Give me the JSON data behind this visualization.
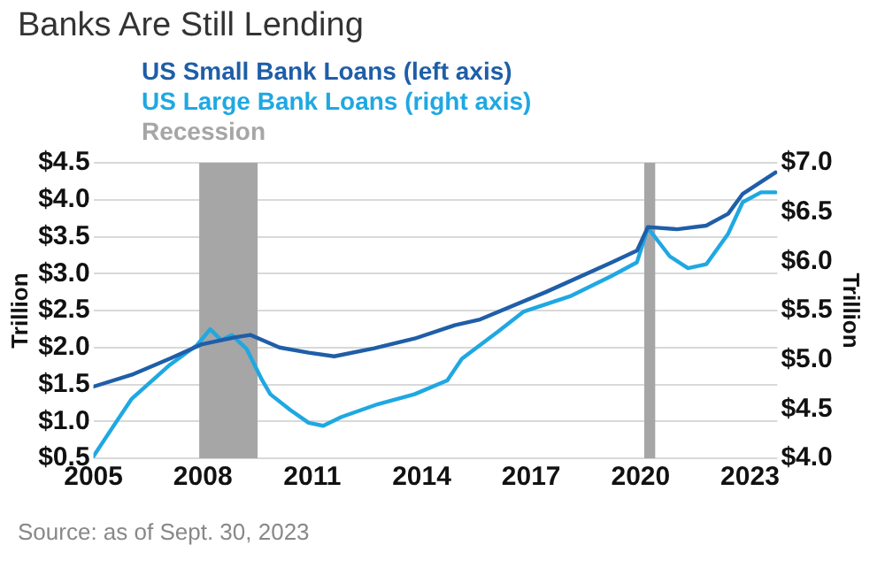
{
  "chart_data": {
    "type": "line",
    "title": "Banks Are Still Lending",
    "ylabel": "Trillion",
    "y2label": "Trillion",
    "annotations": [
      "Source: as of Sept. 30, 2023"
    ],
    "series": [
      {
        "name": "US Small Bank Loans (left axis)",
        "color": "#1f5ea8",
        "x": [
          2005,
          2006.1,
          2007.1,
          2007.95,
          2008.9,
          2009.3,
          2010.1,
          2010.9,
          2011.6,
          2012.7,
          2013.8,
          2014.9,
          2015.6,
          2017.4,
          2019.2,
          2019.9,
          2020.2,
          2021,
          2021.8,
          2022.4,
          2022.8,
          2023.3,
          2023.7
        ],
        "values": [
          1.47,
          1.64,
          1.85,
          2.04,
          2.14,
          2.17,
          2.0,
          1.93,
          1.88,
          1.99,
          2.12,
          2.3,
          2.38,
          2.75,
          3.15,
          3.31,
          3.63,
          3.6,
          3.65,
          3.81,
          4.08,
          4.24,
          4.37
        ]
      },
      {
        "name": "US Large Bank Loans (right axis)",
        "color": "#1fa8e2",
        "axis": "y2",
        "x": [
          2005,
          2005.5,
          2006.04,
          2007.1,
          2007.84,
          2008.2,
          2008.5,
          2008.8,
          2009.2,
          2009.6,
          2009.85,
          2010.4,
          2010.9,
          2011.3,
          2011.8,
          2012.8,
          2013.8,
          2014.7,
          2015.1,
          2016.1,
          2016.8,
          2018.1,
          2019.2,
          2019.9,
          2020.2,
          2020.8,
          2021.3,
          2021.8,
          2022.4,
          2022.8,
          2023.3,
          2023.7
        ],
        "values": [
          4.02,
          4.3,
          4.6,
          4.95,
          5.15,
          5.31,
          5.2,
          5.25,
          5.11,
          4.81,
          4.65,
          4.49,
          4.36,
          4.33,
          4.42,
          4.55,
          4.65,
          4.79,
          5.01,
          5.29,
          5.49,
          5.65,
          5.85,
          5.99,
          6.34,
          6.05,
          5.93,
          5.97,
          6.28,
          6.6,
          6.7,
          6.7
        ]
      }
    ],
    "bands": [
      {
        "axis": "x",
        "from": 2007.9,
        "to": 2009.5,
        "label": "Recession",
        "color": "#a6a6a6"
      },
      {
        "axis": "x",
        "from": 2020.1,
        "to": 2020.4,
        "color": "#a6a6a6"
      }
    ],
    "xlim": [
      2005,
      2023.75
    ],
    "xticks": [
      2005,
      2008,
      2011,
      2014,
      2017,
      2020,
      2023
    ],
    "ylim": [
      0.5,
      4.5
    ],
    "yticks": [
      {
        "value": 0.5,
        "label": "$0.5"
      },
      {
        "value": 1,
        "label": "$1.0"
      },
      {
        "value": 1.5,
        "label": "$1.5"
      },
      {
        "value": 2,
        "label": "$2.0"
      },
      {
        "value": 2.5,
        "label": "$2.5"
      },
      {
        "value": 3,
        "label": "$3.0"
      },
      {
        "value": 3.5,
        "label": "$3.5"
      },
      {
        "value": 4,
        "label": "$4.0"
      },
      {
        "value": 4.5,
        "label": "$4.5"
      }
    ],
    "y2lim": [
      4,
      7
    ],
    "y2ticks": [
      {
        "value": 4,
        "label": "$4.0"
      },
      {
        "value": 4.5,
        "label": "$4.5"
      },
      {
        "value": 5,
        "label": "$5.0"
      },
      {
        "value": 5.5,
        "label": "$5.5"
      },
      {
        "value": 6,
        "label": "$6.0"
      },
      {
        "value": 6.5,
        "label": "$6.5"
      },
      {
        "value": 7,
        "label": "$7.0"
      }
    ],
    "grid": "y",
    "legend": "top left",
    "marker": "none",
    "line_style": "solid"
  }
}
